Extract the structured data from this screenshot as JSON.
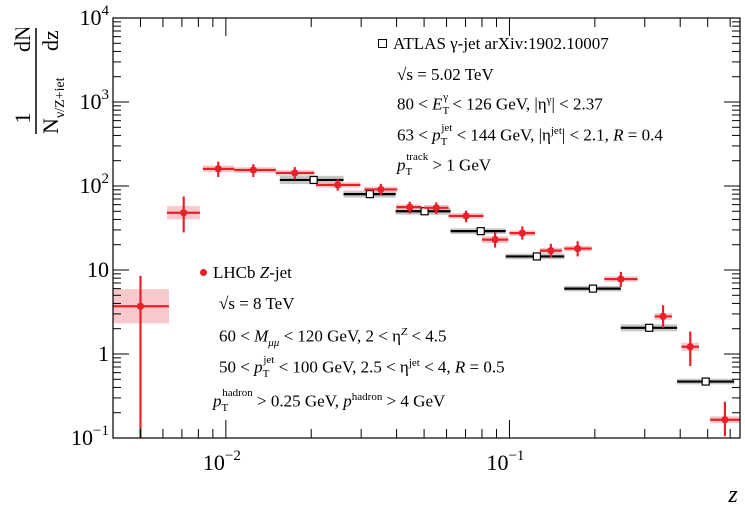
{
  "chart_data": {
    "type": "scatter",
    "xscale": "log",
    "yscale": "log",
    "xlim": [
      0.004,
      0.65
    ],
    "ylim": [
      0.1,
      10000
    ],
    "xlabel": "z",
    "ylabel_numerator": "1",
    "ylabel_denominator": "N",
    "ylabel_denominator_sub": "γ/Z+jet",
    "ylabel_dN": "dN",
    "ylabel_dz": "dz",
    "x_ticks": [
      {
        "value": 0.01,
        "base": "10",
        "exp": "−2"
      },
      {
        "value": 0.1,
        "base": "10",
        "exp": "−1"
      }
    ],
    "y_ticks": [
      {
        "value": 0.1,
        "base": "10",
        "exp": "−1"
      },
      {
        "value": 1,
        "label": "1"
      },
      {
        "value": 10,
        "label": "10"
      },
      {
        "value": 100,
        "base": "10",
        "exp": "2"
      },
      {
        "value": 1000,
        "base": "10",
        "exp": "3"
      },
      {
        "value": 10000,
        "base": "10",
        "exp": "4"
      }
    ],
    "series": [
      {
        "name": "ATLAS γ-jet arXiv:1902.10007",
        "marker": "open-square",
        "color": "#000000",
        "sys_color": "#bdbdbd",
        "points": [
          {
            "x": 0.0204,
            "xlo": 0.0155,
            "xhi": 0.026,
            "y": 118,
            "sys": 0.12
          },
          {
            "x": 0.0322,
            "xlo": 0.026,
            "xhi": 0.0397,
            "y": 80,
            "sys": 0.1
          },
          {
            "x": 0.0502,
            "xlo": 0.0397,
            "xhi": 0.062,
            "y": 50,
            "sys": 0.1
          },
          {
            "x": 0.0792,
            "xlo": 0.062,
            "xhi": 0.097,
            "y": 29,
            "sys": 0.08
          },
          {
            "x": 0.125,
            "xlo": 0.097,
            "xhi": 0.156,
            "y": 14.5,
            "sys": 0.08
          },
          {
            "x": 0.197,
            "xlo": 0.156,
            "xhi": 0.247,
            "y": 6.0,
            "sys": 0.08
          },
          {
            "x": 0.311,
            "xlo": 0.247,
            "xhi": 0.39,
            "y": 2.05,
            "sys": 0.1
          },
          {
            "x": 0.492,
            "xlo": 0.39,
            "xhi": 0.62,
            "y": 0.47,
            "sys": 0.08
          }
        ]
      },
      {
        "name": "LHCb Z-jet",
        "marker": "filled-circle",
        "color": "#e8202a",
        "sys_color": "#f6bcbe",
        "points": [
          {
            "x": 0.005,
            "xlo": 0.004,
            "xhi": 0.0063,
            "y": 3.7,
            "ylo": 0.1,
            "yhi": 8.5,
            "sys": 0.6
          },
          {
            "x": 0.0071,
            "xlo": 0.0062,
            "xhi": 0.0081,
            "y": 48,
            "ylo": 28,
            "yhi": 75,
            "sys": 0.2
          },
          {
            "x": 0.0094,
            "xlo": 0.0083,
            "xhi": 0.0107,
            "y": 160,
            "ylo": 128,
            "yhi": 195,
            "sys": 0.1
          },
          {
            "x": 0.0125,
            "xlo": 0.0107,
            "xhi": 0.015,
            "y": 155,
            "ylo": 128,
            "yhi": 182,
            "sys": 0.08
          },
          {
            "x": 0.0175,
            "xlo": 0.015,
            "xhi": 0.0205,
            "y": 143,
            "ylo": 120,
            "yhi": 168,
            "sys": 0.08
          },
          {
            "x": 0.0248,
            "xlo": 0.0208,
            "xhi": 0.0298,
            "y": 103,
            "ylo": 88,
            "yhi": 120,
            "sys": 0.08
          },
          {
            "x": 0.0352,
            "xlo": 0.0308,
            "xhi": 0.0402,
            "y": 91,
            "ylo": 78,
            "yhi": 106,
            "sys": 0.08
          },
          {
            "x": 0.0445,
            "xlo": 0.0399,
            "xhi": 0.049,
            "y": 56,
            "ylo": 47,
            "yhi": 65,
            "sys": 0.08
          },
          {
            "x": 0.0552,
            "xlo": 0.05,
            "xhi": 0.061,
            "y": 55,
            "ylo": 46,
            "yhi": 64,
            "sys": 0.08
          },
          {
            "x": 0.0703,
            "xlo": 0.061,
            "xhi": 0.081,
            "y": 44,
            "ylo": 37,
            "yhi": 51,
            "sys": 0.08
          },
          {
            "x": 0.089,
            "xlo": 0.08,
            "xhi": 0.099,
            "y": 23,
            "ylo": 18.5,
            "yhi": 28,
            "sys": 0.1
          },
          {
            "x": 0.111,
            "xlo": 0.1,
            "xhi": 0.123,
            "y": 27.5,
            "ylo": 23,
            "yhi": 33,
            "sys": 0.08
          },
          {
            "x": 0.14,
            "xlo": 0.128,
            "xhi": 0.153,
            "y": 17,
            "ylo": 14,
            "yhi": 20.5,
            "sys": 0.08
          },
          {
            "x": 0.174,
            "xlo": 0.156,
            "xhi": 0.195,
            "y": 18,
            "ylo": 14.5,
            "yhi": 22,
            "sys": 0.08
          },
          {
            "x": 0.247,
            "xlo": 0.216,
            "xhi": 0.283,
            "y": 7.8,
            "ylo": 6.3,
            "yhi": 9.5,
            "sys": 0.08
          },
          {
            "x": 0.348,
            "xlo": 0.325,
            "xhi": 0.374,
            "y": 2.8,
            "ylo": 2.05,
            "yhi": 3.8,
            "sys": 0.1
          },
          {
            "x": 0.434,
            "xlo": 0.404,
            "xhi": 0.466,
            "y": 1.22,
            "ylo": 0.72,
            "yhi": 1.85,
            "sys": 0.12
          },
          {
            "x": 0.575,
            "xlo": 0.51,
            "xhi": 0.65,
            "y": 0.165,
            "ylo": 0.105,
            "yhi": 0.27,
            "sys": 0.1
          }
        ]
      }
    ],
    "annotations": {
      "atlas": {
        "legend": "ATLAS γ-jet arXiv:1902.10007",
        "sqrt_s": "= 5.02 TeV",
        "line1_lo": "80 <",
        "line1_hi": "< 126 GeV, |η",
        "line1_end": "| < 2.37",
        "line2_lo": "63 <",
        "line2_hi": "< 144 GeV, |η",
        "line2_end": "| < 2.1,",
        "line2_R": "= 0.4",
        "line3_end": "> 1 GeV"
      },
      "lhcb": {
        "legend_prefix": "LHCb",
        "legend_italic": "Z",
        "legend_suffix": "-jet",
        "sqrt_s": "= 8 TeV",
        "line1_lo": "60 <",
        "line1_hi": "< 120 GeV, 2 < η",
        "line1_end": "< 4.5",
        "line2_lo": "50 <",
        "line2_hi": "< 100 GeV, 2.5 < η",
        "line2_end": "< 4,",
        "line2_R": "= 0.5",
        "line3_mid": "> 0.25 GeV,",
        "line3_end": "> 4 GeV"
      }
    }
  }
}
